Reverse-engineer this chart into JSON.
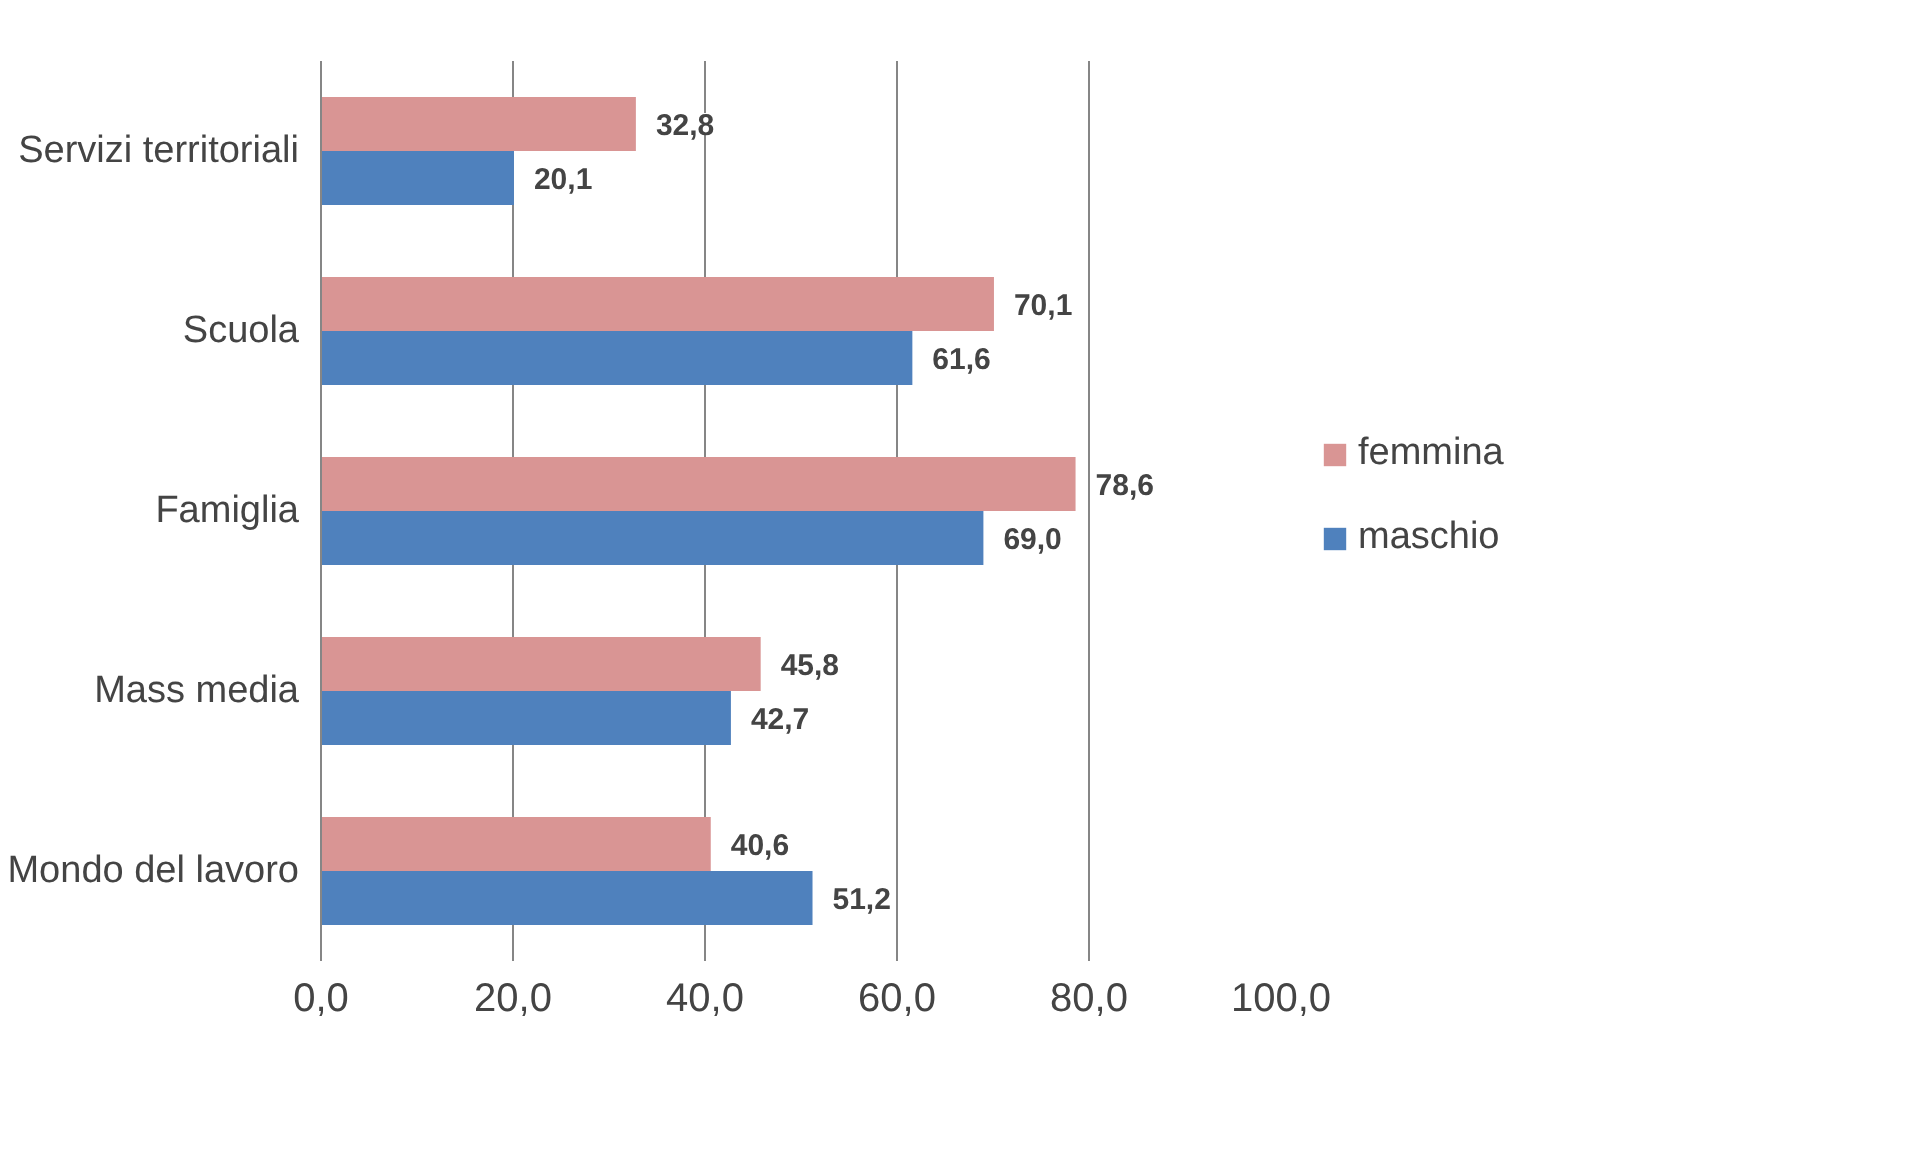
{
  "chart_data": {
    "type": "bar",
    "orientation": "horizontal",
    "categories": [
      "Servizi territoriali",
      "Scuola",
      "Famiglia",
      "Mass media",
      "Mondo del lavoro"
    ],
    "series": [
      {
        "name": "femmina",
        "color": "#d99594",
        "values": [
          32.8,
          70.1,
          78.6,
          45.8,
          40.6
        ],
        "value_labels": [
          "32,8",
          "70,1",
          "78,6",
          "45,8",
          "40,6"
        ]
      },
      {
        "name": "maschio",
        "color": "#4f81bd",
        "values": [
          20.1,
          61.6,
          69.0,
          42.7,
          51.2
        ],
        "value_labels": [
          "20,1",
          "61,6",
          "69,0",
          "42,7",
          "51,2"
        ]
      }
    ],
    "xlim": [
      0,
      100
    ],
    "xticks": [
      {
        "value": 0,
        "label": "0,0"
      },
      {
        "value": 20,
        "label": "20,0"
      },
      {
        "value": 40,
        "label": "40,0"
      },
      {
        "value": 60,
        "label": "60,0"
      },
      {
        "value": 80,
        "label": "80,0"
      },
      {
        "value": 100,
        "label": "100,0"
      }
    ],
    "grid": "x",
    "legend": "right"
  }
}
